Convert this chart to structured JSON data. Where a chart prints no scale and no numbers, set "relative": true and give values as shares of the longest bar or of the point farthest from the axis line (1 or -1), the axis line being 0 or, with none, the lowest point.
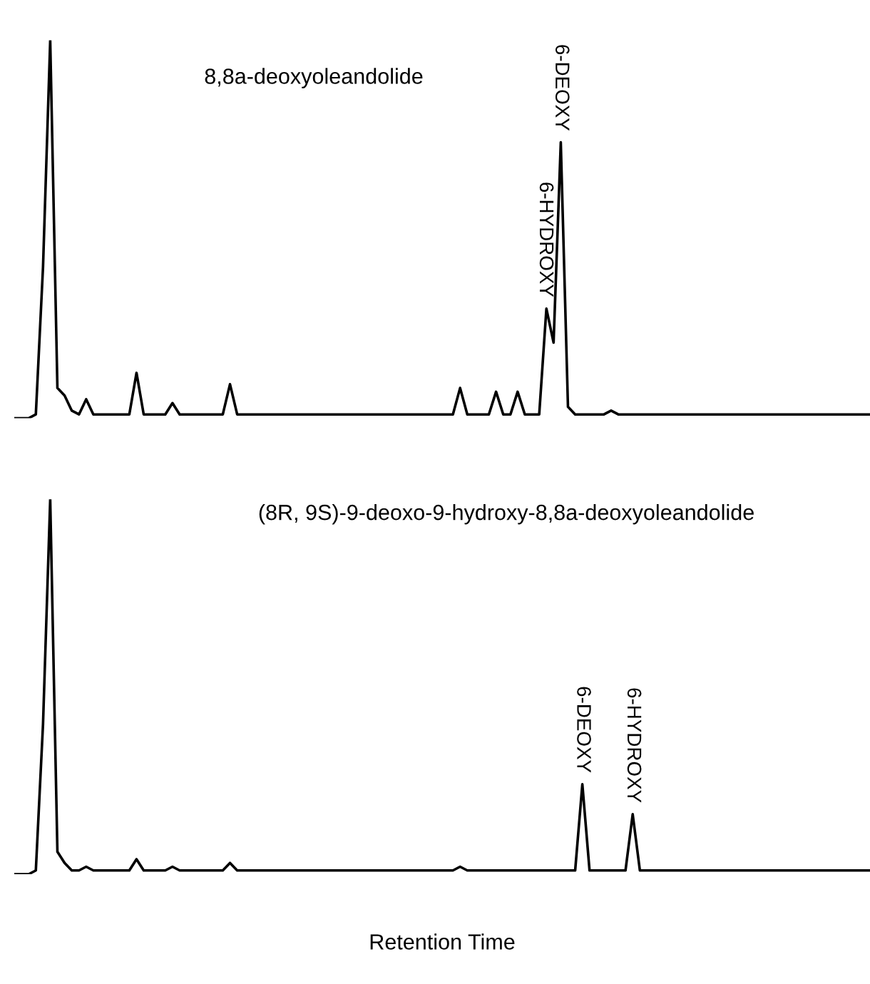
{
  "chart_data": [
    {
      "type": "line",
      "relative": true,
      "title": "8,8a-deoxyoleandolide",
      "tick_labels": false,
      "grid": false,
      "legend": false,
      "categories": [
        null,
        null,
        null,
        null,
        null,
        null,
        null,
        null,
        null,
        null,
        null,
        null,
        null,
        null,
        null,
        null,
        null,
        null,
        null,
        null,
        null,
        null,
        null,
        null,
        null,
        null,
        null,
        null,
        null,
        null,
        null,
        null,
        null,
        null,
        null,
        null,
        null,
        null,
        null,
        null,
        null,
        null,
        null,
        null,
        null,
        null,
        null,
        null,
        null,
        null,
        null,
        null,
        null,
        null,
        null,
        null,
        null,
        null,
        null,
        null,
        null,
        null,
        null,
        null,
        null,
        null,
        null,
        null,
        null,
        null,
        null,
        null,
        null,
        null,
        null,
        null,
        null,
        null,
        null,
        null,
        null,
        null,
        null,
        null,
        null,
        null,
        null,
        null,
        null,
        null,
        null,
        null,
        null,
        null,
        null,
        null,
        null,
        null,
        null,
        null,
        null,
        null,
        null,
        null,
        null,
        null,
        null,
        null,
        null,
        null,
        null,
        null,
        null,
        null,
        null,
        null,
        null,
        null,
        null,
        null
      ],
      "series": [
        {
          "color": "#000000",
          "values": [
            0,
            0,
            0,
            0.01,
            0.4,
            1,
            0.08,
            0.06,
            0.02,
            0.01,
            0.05,
            0.01,
            0.01,
            0.01,
            0.01,
            0.01,
            0.01,
            0.12,
            0.01,
            0.01,
            0.01,
            0.01,
            0.04,
            0.01,
            0.01,
            0.01,
            0.01,
            0.01,
            0.01,
            0.01,
            0.09,
            0.01,
            0.01,
            0.01,
            0.01,
            0.01,
            0.01,
            0.01,
            0.01,
            0.01,
            0.01,
            0.01,
            0.01,
            0.01,
            0.01,
            0.01,
            0.01,
            0.01,
            0.01,
            0.01,
            0.01,
            0.01,
            0.01,
            0.01,
            0.01,
            0.01,
            0.01,
            0.01,
            0.01,
            0.01,
            0.01,
            0.01,
            0.08,
            0.01,
            0.01,
            0.01,
            0.01,
            0.07,
            0.01,
            0.01,
            0.07,
            0.01,
            0.01,
            0.01,
            0.29,
            0.2,
            0.73,
            0.03,
            0.01,
            0.01,
            0.01,
            0.01,
            0.01,
            0.02,
            0.01,
            0.01,
            0.01,
            0.01,
            0.01,
            0.01,
            0.01,
            0.01,
            0.01,
            0.01,
            0.01,
            0.01,
            0.01,
            0.01,
            0.01,
            0.01,
            0.01,
            0.01,
            0.01,
            0.01,
            0.01,
            0.01,
            0.01,
            0.01,
            0.01,
            0.01,
            0.01,
            0.01,
            0.01,
            0.01,
            0.01,
            0.01,
            0.01,
            0.01,
            0.01,
            0.01
          ]
        }
      ],
      "annotations": [
        {
          "text": "6-HYDROXY",
          "y": 0.29
        },
        {
          "text": "6-DEOXY",
          "y": 0.73
        }
      ]
    },
    {
      "type": "line",
      "relative": true,
      "title": "(8R, 9S)-9-deoxo-9-hydroxy-8,8a-deoxyoleandolide",
      "xlabel": "Retention Time",
      "tick_labels": false,
      "grid": false,
      "legend": false,
      "categories": [
        null,
        null,
        null,
        null,
        null,
        null,
        null,
        null,
        null,
        null,
        null,
        null,
        null,
        null,
        null,
        null,
        null,
        null,
        null,
        null,
        null,
        null,
        null,
        null,
        null,
        null,
        null,
        null,
        null,
        null,
        null,
        null,
        null,
        null,
        null,
        null,
        null,
        null,
        null,
        null,
        null,
        null,
        null,
        null,
        null,
        null,
        null,
        null,
        null,
        null,
        null,
        null,
        null,
        null,
        null,
        null,
        null,
        null,
        null,
        null,
        null,
        null,
        null,
        null,
        null,
        null,
        null,
        null,
        null,
        null,
        null,
        null,
        null,
        null,
        null,
        null,
        null,
        null,
        null,
        null,
        null,
        null,
        null,
        null,
        null,
        null,
        null,
        null,
        null,
        null,
        null,
        null,
        null,
        null,
        null,
        null,
        null,
        null,
        null,
        null,
        null,
        null,
        null,
        null,
        null,
        null,
        null,
        null,
        null,
        null,
        null,
        null,
        null,
        null,
        null,
        null,
        null,
        null,
        null,
        null
      ],
      "series": [
        {
          "color": "#000000",
          "values": [
            0,
            0,
            0,
            0.01,
            0.4,
            1,
            0.06,
            0.03,
            0.01,
            0.01,
            0.02,
            0.01,
            0.01,
            0.01,
            0.01,
            0.01,
            0.01,
            0.04,
            0.01,
            0.01,
            0.01,
            0.01,
            0.02,
            0.01,
            0.01,
            0.01,
            0.01,
            0.01,
            0.01,
            0.01,
            0.03,
            0.01,
            0.01,
            0.01,
            0.01,
            0.01,
            0.01,
            0.01,
            0.01,
            0.01,
            0.01,
            0.01,
            0.01,
            0.01,
            0.01,
            0.01,
            0.01,
            0.01,
            0.01,
            0.01,
            0.01,
            0.01,
            0.01,
            0.01,
            0.01,
            0.01,
            0.01,
            0.01,
            0.01,
            0.01,
            0.01,
            0.01,
            0.02,
            0.01,
            0.01,
            0.01,
            0.01,
            0.01,
            0.01,
            0.01,
            0.01,
            0.01,
            0.01,
            0.01,
            0.01,
            0.01,
            0.01,
            0.01,
            0.01,
            0.24,
            0.01,
            0.01,
            0.01,
            0.01,
            0.01,
            0.01,
            0.16,
            0.01,
            0.01,
            0.01,
            0.01,
            0.01,
            0.01,
            0.01,
            0.01,
            0.01,
            0.01,
            0.01,
            0.01,
            0.01,
            0.01,
            0.01,
            0.01,
            0.01,
            0.01,
            0.01,
            0.01,
            0.01,
            0.01,
            0.01,
            0.01,
            0.01,
            0.01,
            0.01,
            0.01,
            0.01,
            0.01,
            0.01,
            0.01,
            0.01
          ]
        }
      ],
      "annotations": [
        {
          "text": "6-DEOXY",
          "y": 0.24
        },
        {
          "text": "6-HYDROXY",
          "y": 0.16
        }
      ]
    }
  ]
}
